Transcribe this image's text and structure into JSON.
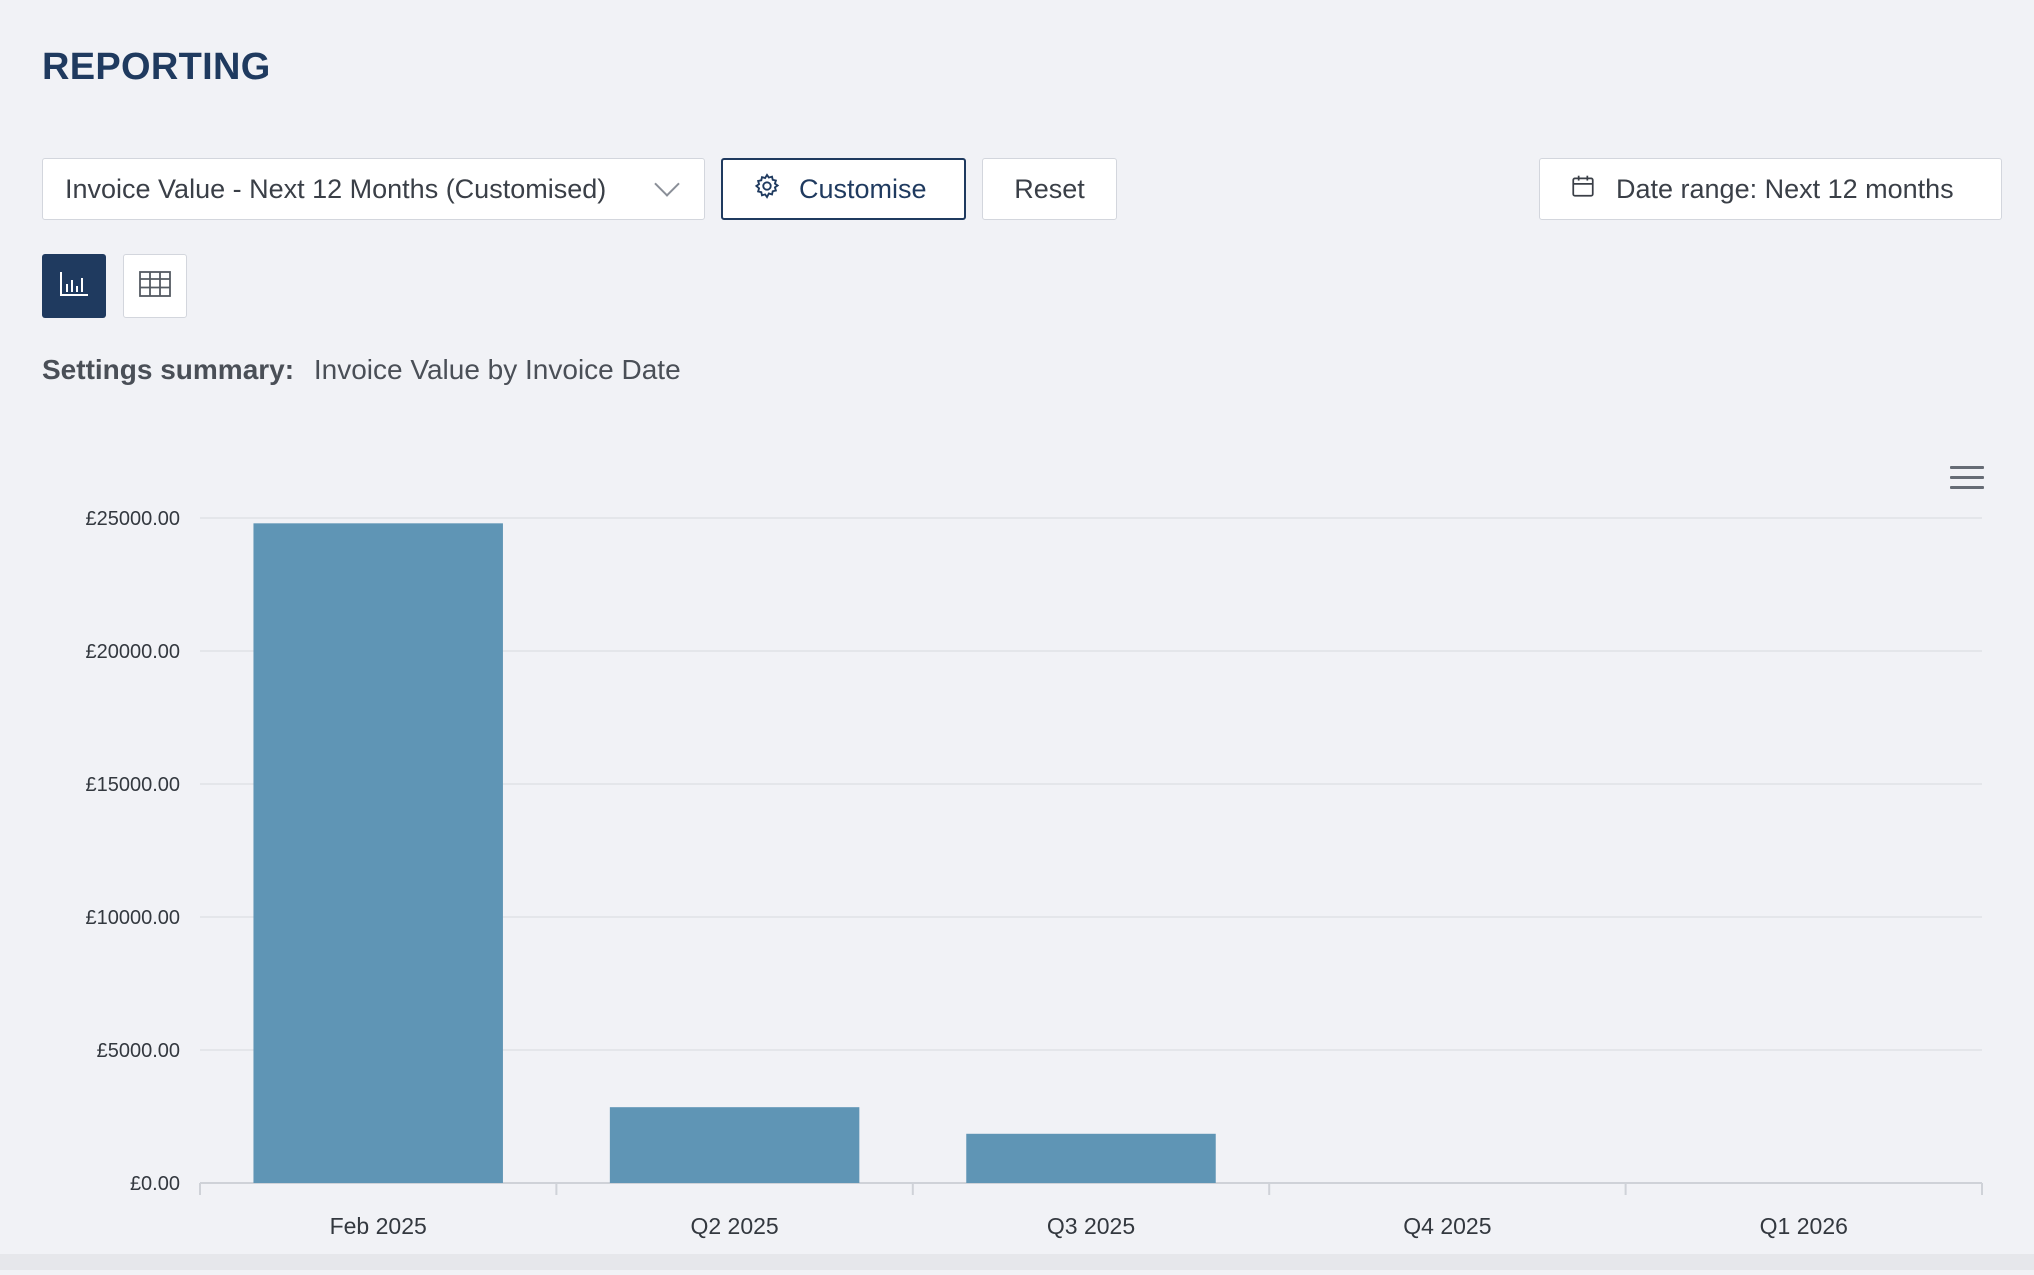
{
  "page": {
    "title": "REPORTING"
  },
  "toolbar": {
    "report_select": {
      "value": "Invoice Value - Next 12 Months (Customised)"
    },
    "customise_label": "Customise",
    "reset_label": "Reset",
    "date_range_label": "Date range: Next 12 months"
  },
  "view_toggle": {
    "chart_icon": "bar-chart-icon",
    "table_icon": "table-icon",
    "active": "chart"
  },
  "summary": {
    "label": "Settings summary:",
    "value": "Invoice Value by Invoice Date"
  },
  "icons": {
    "select": "chevron-down-icon",
    "customise": "gear-icon",
    "date": "calendar-icon",
    "chart_menu": "hamburger-menu-icon"
  },
  "colors": {
    "accent": "#1f3a5f",
    "bar": "#5f95b5"
  },
  "chart_data": {
    "type": "bar",
    "categories": [
      "Feb 2025",
      "Q2 2025",
      "Q3 2025",
      "Q4 2025",
      "Q1 2026"
    ],
    "values": [
      24800,
      2850,
      1850,
      0,
      0
    ],
    "ylim": [
      0,
      25000
    ],
    "yticks": [
      0,
      5000,
      10000,
      15000,
      20000,
      25000
    ],
    "ytick_labels": [
      "£0.00",
      "£5000.00",
      "£10000.00",
      "£15000.00",
      "£20000.00",
      "£25000.00"
    ],
    "grid": true,
    "legend": "none"
  }
}
